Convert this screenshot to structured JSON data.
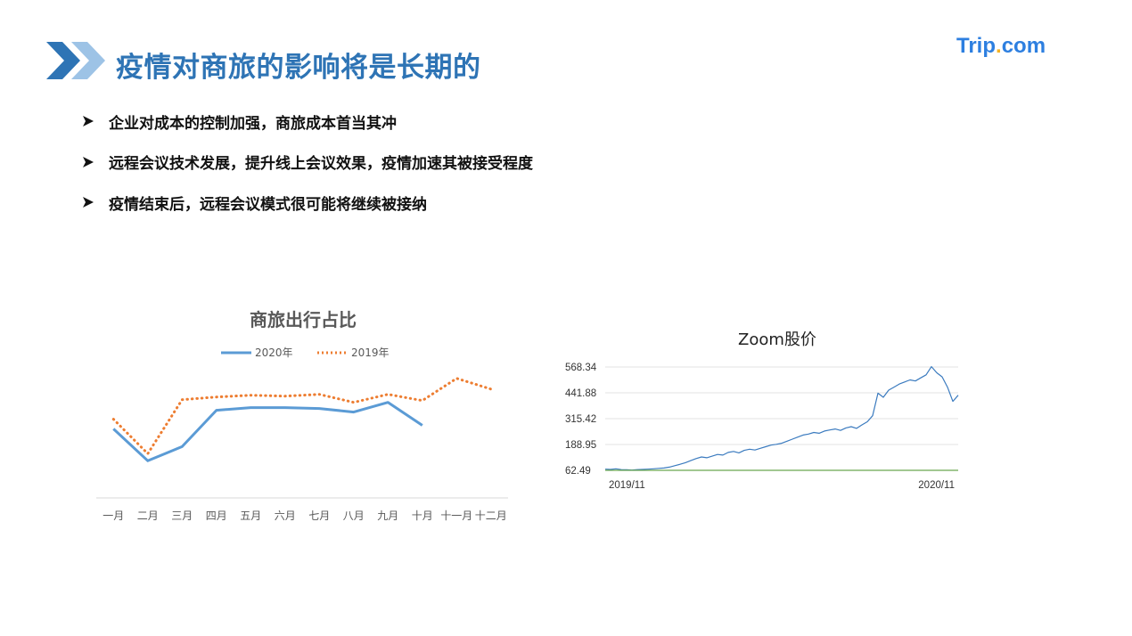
{
  "slide": {
    "title": "疫情对商旅的影响将是长期的",
    "logo_prefix": "Trip",
    "logo_dot": ".",
    "logo_suffix": "com",
    "bullets": [
      "企业对成本的控制加强，商旅成本首当其冲",
      "远程会议技术发展，提升线上会议效果，疫情加速其被接受程度",
      "疫情结束后，远程会议模式很可能将继续被接纳"
    ],
    "colors": {
      "title": "#2e74b5",
      "arrow_dark": "#2e74b5",
      "arrow_light": "#9dc3e6",
      "logo": "#2d7fe0",
      "logo_dot": "#f5b324"
    }
  },
  "chart_data": [
    {
      "type": "line",
      "title": "商旅出行占比",
      "categories": [
        "一月",
        "二月",
        "三月",
        "四月",
        "五月",
        "六月",
        "七月",
        "八月",
        "九月",
        "十月",
        "十一月",
        "十二月"
      ],
      "series": [
        {
          "name": "2020年",
          "color": "#5b9bd5",
          "style": "solid",
          "values": [
            78,
            42,
            58,
            99,
            102,
            102,
            101,
            97,
            108,
            82,
            null,
            null
          ]
        },
        {
          "name": "2019年",
          "color": "#ed7d31",
          "style": "dotted",
          "values": [
            89,
            50,
            111,
            114,
            116,
            115,
            117,
            108,
            117,
            110,
            135,
            123
          ]
        }
      ],
      "ylim": [
        0,
        160
      ],
      "legend": "top",
      "grid": false
    },
    {
      "type": "line",
      "title": "Zoom股价",
      "yticks": [
        "568.34",
        "441.88",
        "315.42",
        "188.95",
        "62.49"
      ],
      "ylim": [
        62.49,
        568.34
      ],
      "xtick_labels": [
        "2019/11",
        "2020/11"
      ],
      "grid": true,
      "series": [
        {
          "name": "",
          "color": "#3b7bbf",
          "values": [
            68,
            67,
            70,
            66,
            65,
            64,
            66,
            67,
            68,
            70,
            72,
            74,
            78,
            85,
            92,
            100,
            110,
            120,
            128,
            124,
            132,
            140,
            137,
            150,
            155,
            148,
            160,
            166,
            162,
            170,
            178,
            186,
            190,
            195,
            205,
            215,
            225,
            235,
            240,
            248,
            244,
            255,
            260,
            265,
            258,
            270,
            276,
            268,
            285,
            300,
            330,
            440,
            420,
            455,
            470,
            485,
            495,
            505,
            500,
            515,
            530,
            570,
            540,
            520,
            470,
            400,
            430
          ]
        },
        {
          "name": "",
          "color": "#6aa84f",
          "values": [
            62.49,
            62.49
          ]
        }
      ]
    }
  ]
}
